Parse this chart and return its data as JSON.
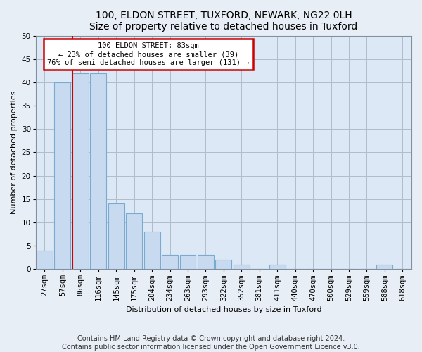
{
  "title1": "100, ELDON STREET, TUXFORD, NEWARK, NG22 0LH",
  "title2": "Size of property relative to detached houses in Tuxford",
  "xlabel": "Distribution of detached houses by size in Tuxford",
  "ylabel": "Number of detached properties",
  "categories": [
    "27sqm",
    "57sqm",
    "86sqm",
    "116sqm",
    "145sqm",
    "175sqm",
    "204sqm",
    "234sqm",
    "263sqm",
    "293sqm",
    "322sqm",
    "352sqm",
    "381sqm",
    "411sqm",
    "440sqm",
    "470sqm",
    "500sqm",
    "529sqm",
    "559sqm",
    "588sqm",
    "618sqm"
  ],
  "values": [
    4,
    40,
    42,
    42,
    14,
    12,
    8,
    3,
    3,
    3,
    2,
    1,
    0,
    1,
    0,
    0,
    0,
    0,
    0,
    1,
    0
  ],
  "bar_color": "#c8daf0",
  "bar_edge_color": "#7aaad0",
  "marker_label": "100 ELDON STREET: 83sqm",
  "annotation_line1": "← 23% of detached houses are smaller (39)",
  "annotation_line2": "76% of semi-detached houses are larger (131) →",
  "vline_color": "#cc0000",
  "annotation_box_color": "#ffffff",
  "annotation_box_edge": "#cc0000",
  "vline_x_index": 2,
  "ylim": [
    0,
    50
  ],
  "yticks": [
    0,
    5,
    10,
    15,
    20,
    25,
    30,
    35,
    40,
    45,
    50
  ],
  "footer1": "Contains HM Land Registry data © Crown copyright and database right 2024.",
  "footer2": "Contains public sector information licensed under the Open Government Licence v3.0.",
  "bg_color": "#e8eef5",
  "plot_bg_color": "#dce8f5",
  "grid_color": "#b0bcc8",
  "title_fontsize": 10,
  "label_fontsize": 8,
  "tick_fontsize": 7.5,
  "footer_fontsize": 7
}
